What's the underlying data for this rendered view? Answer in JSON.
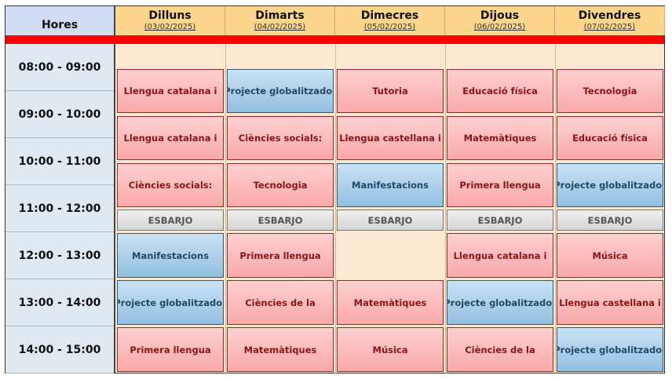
{
  "header": {
    "hours_label": "Hores"
  },
  "days": [
    {
      "name": "Dilluns",
      "date": "(03/02/2025)"
    },
    {
      "name": "Dimarts",
      "date": "(04/02/2025)"
    },
    {
      "name": "Dimecres",
      "date": "(05/02/2025)"
    },
    {
      "name": "Dijous",
      "date": "(06/02/2025)"
    },
    {
      "name": "Divendres",
      "date": "(07/02/2025)"
    }
  ],
  "times": [
    "08:00 - 09:00",
    "09:00 - 10:00",
    "10:00 - 11:00",
    "11:00 - 12:00",
    "12:00 - 13:00",
    "13:00 - 14:00",
    "14:00 - 15:00"
  ],
  "colors": {
    "header": "#fcd68c",
    "subject": "#f9a9a9",
    "project": "#93bfe0",
    "break": "#d4d4d4",
    "divider": "#ff0000"
  },
  "schedule": [
    [
      {
        "t": "Llengua catalana i",
        "c": "red"
      },
      {
        "t": "Projecte globalitzador",
        "c": "blue"
      },
      {
        "t": "Tutoria",
        "c": "red"
      },
      {
        "t": "Educació física",
        "c": "red"
      },
      {
        "t": "Tecnologia",
        "c": "red"
      }
    ],
    [
      {
        "t": "Llengua catalana i",
        "c": "red"
      },
      {
        "t": "Ciències socials:",
        "c": "red"
      },
      {
        "t": "Llengua castellana i",
        "c": "red"
      },
      {
        "t": "Matemàtiques",
        "c": "red"
      },
      {
        "t": "Educació física",
        "c": "red"
      }
    ],
    [
      {
        "t": "Ciències socials:",
        "c": "red"
      },
      {
        "t": "Tecnologia",
        "c": "red"
      },
      {
        "t": "Manifestacions",
        "c": "blue"
      },
      {
        "t": "Primera llengua",
        "c": "red"
      },
      {
        "t": "Projecte globalitzador",
        "c": "blue"
      }
    ],
    [
      {
        "t": "ESBARJO",
        "c": "grey"
      },
      {
        "t": "ESBARJO",
        "c": "grey"
      },
      {
        "t": "ESBARJO",
        "c": "grey"
      },
      {
        "t": "ESBARJO",
        "c": "grey"
      },
      {
        "t": "ESBARJO",
        "c": "grey"
      }
    ],
    [
      {
        "t": "Manifestacions",
        "c": "blue"
      },
      {
        "t": "Primera llengua",
        "c": "red"
      },
      null,
      {
        "t": "Llengua catalana i",
        "c": "red"
      },
      {
        "t": "Música",
        "c": "red"
      }
    ],
    [
      {
        "t": "Projecte globalitzador",
        "c": "blue"
      },
      {
        "t": "Ciències de la",
        "c": "red"
      },
      {
        "t": "Matemàtiques",
        "c": "red"
      },
      {
        "t": "Projecte globalitzador",
        "c": "blue"
      },
      {
        "t": "Llengua castellana i",
        "c": "red"
      }
    ],
    [
      {
        "t": "Primera llengua",
        "c": "red"
      },
      {
        "t": "Matemàtiques",
        "c": "red"
      },
      {
        "t": "Música",
        "c": "red"
      },
      {
        "t": "Ciències de la",
        "c": "red"
      },
      {
        "t": "Projecte globalitzador",
        "c": "blue"
      }
    ]
  ]
}
